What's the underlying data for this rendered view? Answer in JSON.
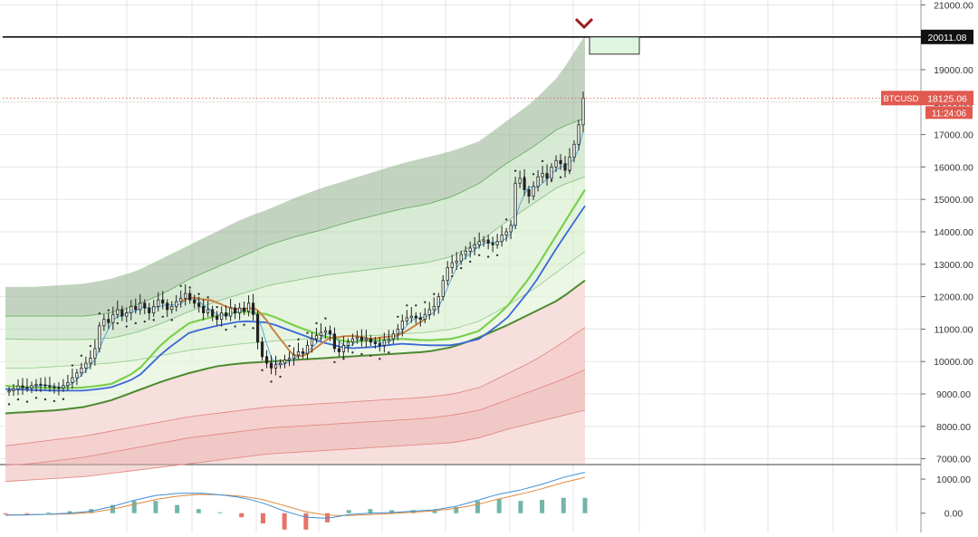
{
  "chart_data": [
    {
      "type": "candlestick",
      "symbol": "BTCUSD",
      "price_label": "18125.06",
      "countdown": "11:24:06",
      "level_label": "20011.08",
      "level_value": 20011.08,
      "current_price": 18125.06,
      "y_ticks": [
        "21000.00",
        "20000.00",
        "19000.00",
        "18000.00",
        "17000.00",
        "16000.00",
        "15000.00",
        "14000.00",
        "13000.00",
        "12000.00",
        "11000.00",
        "10000.00",
        "9000.00",
        "8000.00",
        "7000.00"
      ],
      "ylim": [
        6850,
        21150
      ],
      "grid": true,
      "colors": {
        "candle": "#222222",
        "upper_band": "#3e7a3a",
        "lower_band": "#d96a6a",
        "fast_ma": "#5aa7e0",
        "ema_green": "#7ccf4e",
        "ema_blue": "#3b67d6",
        "ema_orange": "#c88444",
        "support": "#4c8a2f",
        "dots": "#333333",
        "marker": "#9b1c1c",
        "label_red": "#e05a4f",
        "label_dark": "#111111"
      },
      "ohlc_closes": [
        9100,
        9150,
        9250,
        9200,
        9180,
        9260,
        9300,
        9280,
        9250,
        9220,
        9200,
        9180,
        9260,
        9350,
        9500,
        9650,
        9800,
        9950,
        10100,
        10400,
        11100,
        11300,
        11200,
        11450,
        11600,
        11400,
        11500,
        11700,
        11600,
        11800,
        11650,
        11500,
        11700,
        11900,
        11800,
        11600,
        11700,
        11850,
        11950,
        12100,
        11900,
        11800,
        11700,
        11500,
        11600,
        11400,
        11300,
        11500,
        11400,
        11650,
        11500,
        11650,
        11550,
        11800,
        11450,
        10600,
        10150,
        9950,
        9800,
        9900,
        9950,
        10050,
        10100,
        10200,
        10300,
        10250,
        10500,
        10700,
        10800,
        10900,
        10950,
        10850,
        10400,
        10300,
        10500,
        10600,
        10700,
        10750,
        10650,
        10700,
        10600,
        10550,
        10500,
        10650,
        10700,
        10850,
        11000,
        11250,
        11350,
        11400,
        11350,
        11300,
        11450,
        11600,
        11700,
        12000,
        12500,
        12900,
        13050,
        13100,
        13300,
        13400,
        13500,
        13600,
        13700,
        13750,
        13650,
        13600,
        13700,
        13900,
        14000,
        14200,
        15500,
        15650,
        15300,
        15100,
        15400,
        15700,
        15800,
        15650,
        16000,
        16200,
        16100,
        15900,
        16300,
        16700,
        17300,
        18125
      ],
      "series": [
        {
          "name": "",
          "role": "upper-band",
          "values": [
            12300,
            12300,
            12350,
            12400,
            12550,
            12800,
            13200,
            13600,
            14000,
            14400,
            14700,
            15050,
            15350,
            15600,
            15850,
            16100,
            16300,
            16500,
            16800,
            17400,
            18000,
            18800,
            20050
          ]
        },
        {
          "name": "",
          "role": "band-2",
          "values": [
            11400,
            11400,
            11400,
            11400,
            11500,
            11750,
            12100,
            12550,
            12900,
            13250,
            13600,
            13850,
            14050,
            14300,
            14500,
            14700,
            14850,
            15100,
            15500,
            16100,
            16600,
            17200,
            17500
          ]
        },
        {
          "name": "",
          "role": "band-3",
          "values": [
            10700,
            10680,
            10680,
            10680,
            10720,
            10900,
            11200,
            11550,
            11850,
            12100,
            12350,
            12500,
            12650,
            12750,
            12850,
            12950,
            13050,
            13250,
            13700,
            14300,
            14850,
            15400,
            15700
          ]
        },
        {
          "name": "",
          "role": "band-4",
          "values": [
            9800,
            9800,
            9850,
            9900,
            9950,
            10050,
            10200,
            10350,
            10450,
            10550,
            10620,
            10680,
            10720,
            10770,
            10800,
            10850,
            10900,
            11000,
            11250,
            11700,
            12200,
            12800,
            13400
          ]
        },
        {
          "name": "",
          "role": "support",
          "values": [
            8400,
            8450,
            8500,
            8600,
            8800,
            9100,
            9400,
            9650,
            9850,
            9950,
            10000,
            10050,
            10100,
            10150,
            10200,
            10250,
            10300,
            10450,
            10750,
            11100,
            11500,
            11900,
            12500
          ]
        },
        {
          "name": "",
          "role": "lower-1",
          "values": [
            7400,
            7500,
            7600,
            7700,
            7850,
            8000,
            8150,
            8300,
            8400,
            8500,
            8600,
            8650,
            8700,
            8750,
            8800,
            8850,
            8900,
            9000,
            9200,
            9600,
            10000,
            10500,
            11050
          ]
        },
        {
          "name": "",
          "role": "lower-2",
          "values": [
            6800,
            6850,
            6950,
            7050,
            7200,
            7350,
            7500,
            7650,
            7750,
            7850,
            7950,
            8000,
            8050,
            8100,
            8150,
            8200,
            8250,
            8350,
            8500,
            8800,
            9100,
            9400,
            9750
          ]
        },
        {
          "name": "",
          "role": "lower-3",
          "values": [
            6300,
            6350,
            6400,
            6450,
            6550,
            6650,
            6750,
            6850,
            6950,
            7050,
            7150,
            7200,
            7250,
            7300,
            7350,
            7400,
            7450,
            7500,
            7650,
            7900,
            8100,
            8300,
            8500
          ]
        },
        {
          "name": "",
          "role": "ema-blue",
          "values": [
            9150,
            9120,
            9100,
            9100,
            9200,
            9500,
            10300,
            10900,
            11100,
            11250,
            11200,
            10900,
            10600,
            10400,
            10450,
            10550,
            10500,
            10500,
            10700,
            11300,
            12300,
            13600,
            14800
          ]
        },
        {
          "name": "",
          "role": "ema-green",
          "values": [
            9250,
            9200,
            9180,
            9200,
            9300,
            9700,
            10600,
            11200,
            11400,
            11550,
            11450,
            11100,
            10800,
            10600,
            10650,
            10700,
            10650,
            10700,
            10950,
            11650,
            12700,
            14000,
            15300
          ]
        }
      ]
    },
    {
      "type": "macd",
      "y_ticks": [
        "1000.00",
        "0.00"
      ],
      "ylim": [
        -300,
        1400
      ],
      "macd": [
        -60,
        -50,
        -30,
        0,
        60,
        200,
        380,
        520,
        580,
        590,
        540,
        460,
        300,
        60,
        -120,
        -150,
        -40,
        0,
        20,
        60,
        100,
        200,
        380,
        560,
        680,
        850,
        1050,
        1200
      ],
      "signal": [
        -50,
        -45,
        -35,
        -20,
        20,
        120,
        260,
        400,
        500,
        550,
        540,
        500,
        400,
        220,
        40,
        -60,
        -70,
        -40,
        -10,
        30,
        70,
        140,
        260,
        420,
        560,
        720,
        900,
        1050
      ]
    }
  ]
}
